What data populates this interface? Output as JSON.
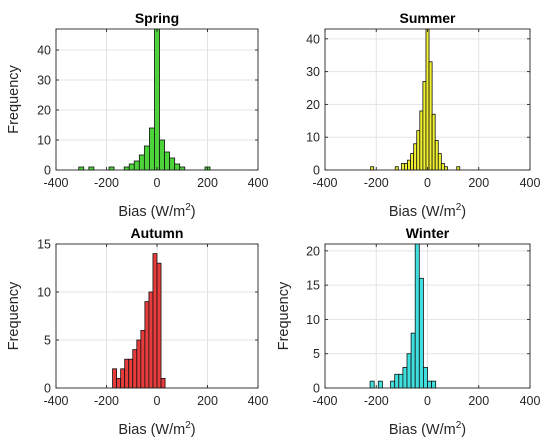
{
  "chart_data": [
    {
      "type": "bar",
      "title": "Spring",
      "xlabel": "Bias (W/m",
      "xlabel_sup": "2",
      "xlabel_close": ")",
      "ylabel": "Frequency",
      "xlim": [
        -400,
        400
      ],
      "ylim": [
        0,
        47
      ],
      "xticks": [
        "-400",
        "-200",
        "0",
        "200",
        "400"
      ],
      "yticks": [
        "0",
        "10",
        "20",
        "30",
        "40"
      ],
      "grid": true,
      "color": "#4cd43a",
      "bin_width": 20,
      "bins": [
        {
          "x": -300,
          "count": 1
        },
        {
          "x": -260,
          "count": 1
        },
        {
          "x": -180,
          "count": 1
        },
        {
          "x": -120,
          "count": 1
        },
        {
          "x": -100,
          "count": 2
        },
        {
          "x": -80,
          "count": 3
        },
        {
          "x": -60,
          "count": 5
        },
        {
          "x": -40,
          "count": 8
        },
        {
          "x": -20,
          "count": 14
        },
        {
          "x": 0,
          "count": 47
        },
        {
          "x": 20,
          "count": 10
        },
        {
          "x": 40,
          "count": 6
        },
        {
          "x": 60,
          "count": 4
        },
        {
          "x": 80,
          "count": 2
        },
        {
          "x": 100,
          "count": 1
        },
        {
          "x": 200,
          "count": 1
        }
      ]
    },
    {
      "type": "bar",
      "title": "Summer",
      "xlabel": "Bias (W/m",
      "xlabel_sup": "2",
      "xlabel_close": ")",
      "ylabel": "",
      "xlim": [
        -400,
        400
      ],
      "ylim": [
        0,
        43
      ],
      "xticks": [
        "-400",
        "-200",
        "0",
        "200",
        "400"
      ],
      "yticks": [
        "0",
        "10",
        "20",
        "30",
        "40"
      ],
      "grid": true,
      "color": "#f0f030",
      "bin_width": 12,
      "bins": [
        {
          "x": -216,
          "count": 1
        },
        {
          "x": -120,
          "count": 1
        },
        {
          "x": -96,
          "count": 2
        },
        {
          "x": -84,
          "count": 2
        },
        {
          "x": -72,
          "count": 3
        },
        {
          "x": -60,
          "count": 5
        },
        {
          "x": -48,
          "count": 8
        },
        {
          "x": -36,
          "count": 12
        },
        {
          "x": -24,
          "count": 18
        },
        {
          "x": -12,
          "count": 27
        },
        {
          "x": 0,
          "count": 43
        },
        {
          "x": 12,
          "count": 33
        },
        {
          "x": 24,
          "count": 17
        },
        {
          "x": 36,
          "count": 9
        },
        {
          "x": 48,
          "count": 5
        },
        {
          "x": 60,
          "count": 2
        },
        {
          "x": 72,
          "count": 1
        },
        {
          "x": 120,
          "count": 1
        }
      ]
    },
    {
      "type": "bar",
      "title": "Autumn",
      "xlabel": "Bias (W/m",
      "xlabel_sup": "2",
      "xlabel_close": ")",
      "ylabel": "Frequency",
      "xlim": [
        -400,
        400
      ],
      "ylim": [
        0,
        15
      ],
      "xticks": [
        "-400",
        "-200",
        "0",
        "200",
        "400"
      ],
      "yticks": [
        "0",
        "5",
        "10",
        "15"
      ],
      "grid": true,
      "color": "#e83c3c",
      "bin_width": 16,
      "bins": [
        {
          "x": -168,
          "count": 2
        },
        {
          "x": -152,
          "count": 1
        },
        {
          "x": -136,
          "count": 2
        },
        {
          "x": -120,
          "count": 3
        },
        {
          "x": -104,
          "count": 3
        },
        {
          "x": -88,
          "count": 4
        },
        {
          "x": -72,
          "count": 5
        },
        {
          "x": -56,
          "count": 6
        },
        {
          "x": -40,
          "count": 9
        },
        {
          "x": -24,
          "count": 10
        },
        {
          "x": -8,
          "count": 14
        },
        {
          "x": 8,
          "count": 13
        },
        {
          "x": 24,
          "count": 1
        }
      ]
    },
    {
      "type": "bar",
      "title": "Winter",
      "xlabel": "Bias (W/m",
      "xlabel_sup": "2",
      "xlabel_close": ")",
      "ylabel": "Frequency",
      "xlim": [
        -400,
        400
      ],
      "ylim": [
        0,
        21
      ],
      "xticks": [
        "-400",
        "-200",
        "0",
        "200",
        "400"
      ],
      "yticks": [
        "0",
        "5",
        "10",
        "15",
        "20"
      ],
      "grid": true,
      "color": "#40e0e0",
      "bin_width": 16,
      "bins": [
        {
          "x": -216,
          "count": 1
        },
        {
          "x": -184,
          "count": 1
        },
        {
          "x": -136,
          "count": 1
        },
        {
          "x": -120,
          "count": 2
        },
        {
          "x": -104,
          "count": 2
        },
        {
          "x": -88,
          "count": 3
        },
        {
          "x": -72,
          "count": 5
        },
        {
          "x": -56,
          "count": 8
        },
        {
          "x": -40,
          "count": 21
        },
        {
          "x": -24,
          "count": 16
        },
        {
          "x": -8,
          "count": 3
        },
        {
          "x": 8,
          "count": 1
        },
        {
          "x": 24,
          "count": 1
        }
      ]
    }
  ]
}
